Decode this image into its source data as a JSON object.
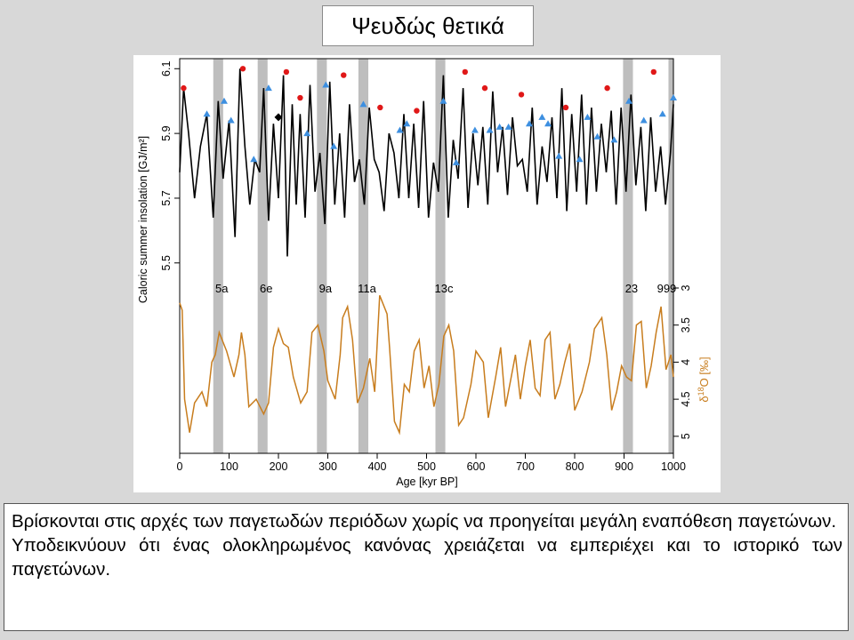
{
  "slide": {
    "title": "Ψευδώς θετικά",
    "caption": [
      "Βρίσκονται στις αρχές των παγετωδών περιόδων χωρίς να προηγείται μεγάλη εναπόθεση παγετώνων.",
      "Υποδεικνύουν ότι ένας ολοκληρωμένος κανόνας χρειάζεται να εμπεριέχει και το ιστορικό των παγετώνων."
    ]
  },
  "chart_data": {
    "type": "line",
    "xlabel": "Age [kyr BP]",
    "xlim": [
      0,
      1000
    ],
    "xticks": [
      0,
      100,
      200,
      300,
      400,
      500,
      600,
      700,
      800,
      900,
      1000
    ],
    "colors": {
      "insolation": "#000000",
      "d18o": "#c87d1e",
      "highlight": "#bebebe",
      "red_marker": "#e01818",
      "blue_marker": "#3d8fe0",
      "black_marker": "#000000"
    },
    "highlight_bands": [
      {
        "label": "5a",
        "x0": 68,
        "x1": 88
      },
      {
        "label": "6e",
        "x0": 158,
        "x1": 178
      },
      {
        "label": "9a",
        "x0": 278,
        "x1": 298
      },
      {
        "label": "11a",
        "x0": 362,
        "x1": 382
      },
      {
        "label": "13c",
        "x0": 518,
        "x1": 538
      },
      {
        "label": "23",
        "x0": 898,
        "x1": 918
      },
      {
        "label": "999",
        "x0": 990,
        "x1": 1000
      }
    ],
    "insolation": {
      "ylabel": "Caloric summer insolation [GJ/m²]",
      "ylim": [
        5.45,
        6.12
      ],
      "yticks": [
        5.5,
        5.7,
        5.9,
        6.1
      ],
      "series": {
        "x": [
          0,
          8,
          18,
          30,
          42,
          55,
          68,
          78,
          88,
          100,
          112,
          122,
          132,
          142,
          152,
          162,
          170,
          180,
          190,
          200,
          210,
          218,
          228,
          236,
          244,
          254,
          264,
          274,
          284,
          294,
          304,
          314,
          324,
          334,
          344,
          354,
          364,
          374,
          384,
          394,
          404,
          414,
          424,
          434,
          444,
          454,
          464,
          474,
          484,
          494,
          504,
          514,
          524,
          534,
          544,
          554,
          564,
          574,
          584,
          594,
          604,
          614,
          624,
          634,
          644,
          654,
          664,
          674,
          684,
          694,
          704,
          714,
          724,
          734,
          744,
          754,
          764,
          774,
          784,
          794,
          804,
          814,
          824,
          834,
          844,
          854,
          864,
          874,
          884,
          894,
          904,
          914,
          924,
          934,
          944,
          954,
          964,
          974,
          984,
          994,
          1000
        ],
        "y": [
          5.78,
          6.04,
          5.9,
          5.7,
          5.86,
          5.96,
          5.64,
          6.0,
          5.76,
          5.94,
          5.58,
          6.1,
          5.86,
          5.68,
          5.82,
          5.78,
          6.04,
          5.63,
          5.93,
          5.7,
          6.08,
          5.52,
          5.99,
          5.68,
          5.96,
          5.64,
          6.05,
          5.72,
          5.84,
          5.62,
          6.06,
          5.68,
          5.9,
          5.64,
          5.99,
          5.75,
          5.82,
          5.68,
          5.98,
          5.82,
          5.78,
          5.66,
          5.9,
          5.84,
          5.7,
          5.96,
          5.7,
          5.93,
          5.67,
          6.0,
          5.64,
          5.81,
          5.72,
          6.08,
          5.64,
          5.88,
          5.76,
          6.04,
          5.67,
          5.9,
          5.74,
          5.92,
          5.68,
          6.03,
          5.78,
          5.92,
          5.71,
          5.95,
          5.8,
          5.82,
          5.72,
          5.98,
          5.68,
          5.86,
          5.75,
          5.95,
          5.7,
          6.04,
          5.66,
          5.96,
          5.72,
          6.02,
          5.68,
          5.98,
          5.72,
          5.93,
          5.78,
          5.97,
          5.68,
          5.98,
          5.72,
          6.02,
          5.74,
          5.92,
          5.66,
          5.95,
          5.72,
          5.86,
          5.68,
          5.84,
          5.99
        ]
      },
      "markers_red": [
        [
          8,
          6.04
        ],
        [
          128,
          6.1
        ],
        [
          216,
          6.09
        ],
        [
          244,
          6.01
        ],
        [
          332,
          6.08
        ],
        [
          406,
          5.98
        ],
        [
          480,
          5.97
        ],
        [
          578,
          6.09
        ],
        [
          618,
          6.04
        ],
        [
          692,
          6.02
        ],
        [
          782,
          5.98
        ],
        [
          866,
          6.04
        ],
        [
          960,
          6.09
        ]
      ],
      "markers_blue": [
        [
          55,
          5.96
        ],
        [
          90,
          6.0
        ],
        [
          104,
          5.94
        ],
        [
          150,
          5.82
        ],
        [
          180,
          6.04
        ],
        [
          258,
          5.9
        ],
        [
          296,
          6.05
        ],
        [
          312,
          5.86
        ],
        [
          372,
          5.99
        ],
        [
          446,
          5.91
        ],
        [
          460,
          5.93
        ],
        [
          534,
          6.0
        ],
        [
          560,
          5.81
        ],
        [
          598,
          5.91
        ],
        [
          628,
          5.91
        ],
        [
          648,
          5.92
        ],
        [
          666,
          5.92
        ],
        [
          708,
          5.93
        ],
        [
          734,
          5.95
        ],
        [
          746,
          5.93
        ],
        [
          768,
          5.83
        ],
        [
          810,
          5.82
        ],
        [
          826,
          5.95
        ],
        [
          846,
          5.89
        ],
        [
          880,
          5.88
        ],
        [
          910,
          6.0
        ],
        [
          940,
          5.94
        ],
        [
          978,
          5.96
        ],
        [
          1000,
          6.01
        ]
      ],
      "markers_black": [
        [
          200,
          5.95
        ]
      ]
    },
    "d18o": {
      "ylabel": "δ18O [‰]",
      "ylim": [
        5.05,
        3.0
      ],
      "yticks": [
        3,
        3.5,
        4,
        4.5,
        5
      ],
      "ytick_labels": [
        "3",
        "3.5",
        "4",
        "4.5",
        "5"
      ],
      "series": {
        "x": [
          0,
          5,
          10,
          20,
          30,
          45,
          55,
          65,
          72,
          80,
          95,
          110,
          120,
          125,
          132,
          140,
          155,
          170,
          180,
          190,
          200,
          210,
          220,
          230,
          245,
          258,
          268,
          280,
          292,
          300,
          315,
          325,
          330,
          340,
          350,
          360,
          372,
          385,
          395,
          405,
          420,
          425,
          435,
          445,
          455,
          465,
          475,
          485,
          495,
          505,
          515,
          525,
          535,
          545,
          555,
          565,
          575,
          590,
          600,
          615,
          625,
          640,
          650,
          660,
          670,
          680,
          690,
          700,
          710,
          720,
          730,
          740,
          750,
          760,
          770,
          780,
          790,
          800,
          815,
          830,
          840,
          855,
          865,
          875,
          885,
          895,
          905,
          915,
          925,
          935,
          945,
          955,
          965,
          975,
          985,
          995,
          1000
        ],
        "y": [
          3.2,
          3.3,
          4.5,
          4.95,
          4.55,
          4.4,
          4.6,
          4.0,
          3.9,
          3.6,
          3.85,
          4.2,
          3.9,
          3.6,
          3.9,
          4.6,
          4.5,
          4.7,
          4.55,
          3.8,
          3.55,
          3.75,
          3.8,
          4.2,
          4.55,
          4.4,
          3.6,
          3.5,
          3.85,
          4.25,
          4.5,
          3.9,
          3.4,
          3.25,
          3.7,
          4.55,
          4.35,
          3.95,
          4.4,
          3.1,
          3.35,
          3.8,
          4.8,
          4.95,
          4.3,
          4.4,
          3.85,
          3.7,
          4.35,
          4.05,
          4.6,
          4.3,
          3.65,
          3.5,
          3.85,
          4.85,
          4.75,
          4.3,
          3.85,
          4.0,
          4.75,
          4.2,
          3.8,
          4.6,
          4.25,
          3.9,
          4.5,
          4.05,
          3.7,
          4.35,
          4.45,
          3.7,
          3.6,
          4.5,
          4.3,
          4.0,
          3.75,
          4.65,
          4.4,
          4.0,
          3.55,
          3.4,
          3.9,
          4.65,
          4.4,
          4.05,
          4.2,
          4.25,
          3.5,
          3.45,
          4.35,
          4.05,
          3.6,
          3.25,
          4.1,
          3.9,
          4.2
        ]
      }
    }
  }
}
